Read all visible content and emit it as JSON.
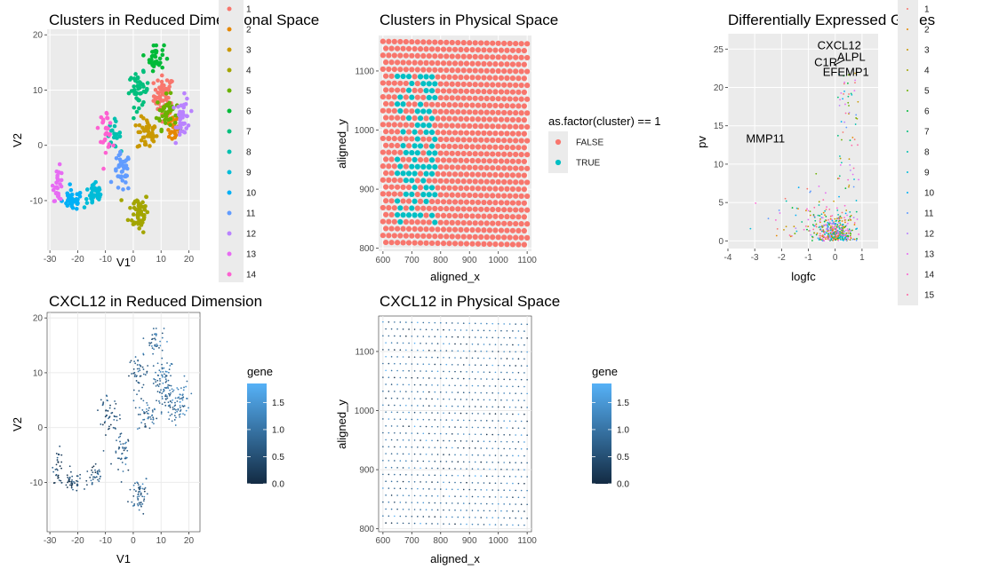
{
  "palette": [
    "#F8766D",
    "#E58700",
    "#C99800",
    "#A3A500",
    "#6BB100",
    "#00BA38",
    "#00BF7D",
    "#00C0AF",
    "#00BCD8",
    "#00B0F6",
    "#619CFF",
    "#B983FF",
    "#E76BF3",
    "#FD61D1",
    "#FF67A4"
  ],
  "gradient": {
    "low": "#132B43",
    "high": "#56B1F7"
  },
  "chart_data": [
    {
      "id": "umap_clusters",
      "type": "scatter",
      "title": "Clusters in Reduced Dimensional Space",
      "xlabel": "V1",
      "ylabel": "V2",
      "xlim": [
        -31,
        24
      ],
      "ylim": [
        -19,
        21
      ],
      "xticks": [
        -30,
        -20,
        -10,
        0,
        10,
        20
      ],
      "yticks": [
        -10,
        0,
        10,
        20
      ],
      "legend": {
        "title": "",
        "position": "right",
        "entries": [
          "1",
          "2",
          "3",
          "4",
          "5",
          "6",
          "7",
          "8",
          "9",
          "10",
          "11",
          "12",
          "13",
          "14"
        ]
      },
      "clusters": [
        {
          "name": "1",
          "center": [
            11,
            9
          ],
          "spread": [
            3,
            3
          ],
          "n": 55
        },
        {
          "name": "2",
          "center": [
            14,
            3
          ],
          "spread": [
            2,
            2
          ],
          "n": 25
        },
        {
          "name": "3",
          "center": [
            5,
            2
          ],
          "spread": [
            3,
            2.5
          ],
          "n": 45
        },
        {
          "name": "4",
          "center": [
            2,
            -12
          ],
          "spread": [
            3,
            3
          ],
          "n": 55
        },
        {
          "name": "5",
          "center": [
            12,
            6
          ],
          "spread": [
            3,
            2.5
          ],
          "n": 40
        },
        {
          "name": "6",
          "center": [
            8,
            16
          ],
          "spread": [
            2.5,
            2
          ],
          "n": 35
        },
        {
          "name": "7",
          "center": [
            2,
            10
          ],
          "spread": [
            3,
            2.5
          ],
          "n": 45
        },
        {
          "name": "8",
          "center": [
            -7,
            2
          ],
          "spread": [
            2,
            2
          ],
          "n": 20
        },
        {
          "name": "9",
          "center": [
            -14,
            -9
          ],
          "spread": [
            3,
            2
          ],
          "n": 35
        },
        {
          "name": "10",
          "center": [
            -22,
            -10
          ],
          "spread": [
            3,
            1.5
          ],
          "n": 40
        },
        {
          "name": "11",
          "center": [
            -4,
            -5
          ],
          "spread": [
            2.5,
            3
          ],
          "n": 40
        },
        {
          "name": "12",
          "center": [
            18,
            5
          ],
          "spread": [
            2,
            3
          ],
          "n": 40
        },
        {
          "name": "13",
          "center": [
            -27,
            -7
          ],
          "spread": [
            1.5,
            2.5
          ],
          "n": 30
        },
        {
          "name": "14",
          "center": [
            -10,
            3
          ],
          "spread": [
            2,
            3
          ],
          "n": 30
        }
      ]
    },
    {
      "id": "spatial_clusters",
      "type": "scatter",
      "title": "Clusters in Physical Space",
      "xlabel": "aligned_x",
      "ylabel": "aligned_y",
      "xlim": [
        585,
        1115
      ],
      "ylim": [
        795,
        1160
      ],
      "xticks": [
        600,
        700,
        800,
        900,
        1000,
        1100
      ],
      "yticks": [
        800,
        900,
        1000,
        1100
      ],
      "grid_points": {
        "x_start": 600,
        "x_end": 1100,
        "x_step": 20,
        "y_start": 810,
        "y_end": 1150,
        "rows": 30
      },
      "highlight": {
        "label": "TRUE",
        "x_range": [
          650,
          780
        ]
      },
      "legend": {
        "title": "as.factor(cluster) == 1",
        "position": "right",
        "entries": [
          "FALSE",
          "TRUE"
        ]
      },
      "colors": {
        "FALSE": "#F8766D",
        "TRUE": "#00BFC4"
      }
    },
    {
      "id": "volcano",
      "type": "scatter",
      "title": "Differentially Expressed Genes",
      "xlabel": "logfc",
      "ylabel": "pv",
      "xlim": [
        -4,
        1.6
      ],
      "ylim": [
        -1,
        27
      ],
      "xticks": [
        -4,
        -3,
        -2,
        -1,
        0,
        1
      ],
      "yticks": [
        0,
        5,
        10,
        15,
        20,
        25
      ],
      "legend": {
        "title": "",
        "position": "right",
        "entries": [
          "1",
          "2",
          "3",
          "4",
          "5",
          "6",
          "7",
          "8",
          "9",
          "10",
          "11",
          "12",
          "13",
          "14",
          "15"
        ]
      },
      "annotations": [
        {
          "label": "CXCL12",
          "x": 0.15,
          "y": 25
        },
        {
          "label": "ALPL",
          "x": 0.6,
          "y": 23.5
        },
        {
          "label": "C1R",
          "x": -0.35,
          "y": 22.8
        },
        {
          "label": "EFEMP1",
          "x": 0.4,
          "y": 21.5
        },
        {
          "label": "MMP11",
          "x": -2.6,
          "y": 12.8
        }
      ]
    },
    {
      "id": "umap_gene",
      "type": "scatter",
      "title": "CXCL12 in Reduced Dimension",
      "xlabel": "V1",
      "ylabel": "V2",
      "xlim": [
        -31,
        24
      ],
      "ylim": [
        -19,
        21
      ],
      "xticks": [
        -30,
        -20,
        -10,
        0,
        10,
        20
      ],
      "yticks": [
        -10,
        0,
        10,
        20
      ],
      "legend": {
        "title": "gene",
        "position": "right",
        "ticks": [
          0.0,
          0.5,
          1.0,
          1.5
        ],
        "tick_labels": [
          "0.0",
          "0.5",
          "1.0",
          "1.5"
        ],
        "range": [
          0,
          1.85
        ]
      }
    },
    {
      "id": "spatial_gene",
      "type": "scatter",
      "title": "CXCL12 in Physical Space",
      "xlabel": "aligned_x",
      "ylabel": "aligned_y",
      "xlim": [
        585,
        1115
      ],
      "ylim": [
        795,
        1160
      ],
      "xticks": [
        600,
        700,
        800,
        900,
        1000,
        1100
      ],
      "yticks": [
        800,
        900,
        1000,
        1100
      ],
      "legend": {
        "title": "gene",
        "position": "right",
        "ticks": [
          0.0,
          0.5,
          1.0,
          1.5
        ],
        "tick_labels": [
          "0.0",
          "0.5",
          "1.0",
          "1.5"
        ],
        "range": [
          0,
          1.85
        ]
      }
    }
  ]
}
